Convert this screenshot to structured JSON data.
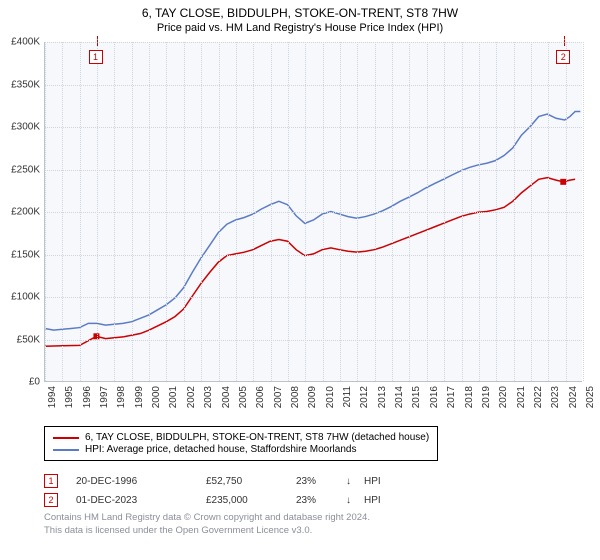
{
  "title": {
    "line1": "6, TAY CLOSE, BIDDULPH, STOKE-ON-TRENT, ST8 7HW",
    "line2": "Price paid vs. HM Land Registry's House Price Index (HPI)"
  },
  "chart": {
    "type": "line",
    "background_color": "#f6f8fc",
    "grid_color": "#d0d5dd",
    "axis_color": "#bcc3cc",
    "ylim": [
      0,
      400000
    ],
    "ytick_step": 50000,
    "yticks": [
      "£0",
      "£50K",
      "£100K",
      "£150K",
      "£200K",
      "£250K",
      "£300K",
      "£350K",
      "£400K"
    ],
    "xlim": [
      1994,
      2025
    ],
    "xticks": [
      "1994",
      "1995",
      "1996",
      "1997",
      "1998",
      "1999",
      "2000",
      "2001",
      "2002",
      "2003",
      "2004",
      "2005",
      "2006",
      "2007",
      "2008",
      "2009",
      "2010",
      "2011",
      "2012",
      "2013",
      "2014",
      "2015",
      "2016",
      "2017",
      "2018",
      "2019",
      "2020",
      "2021",
      "2022",
      "2023",
      "2024",
      "2025"
    ],
    "label_fontsize": 10,
    "series": [
      {
        "id": "price_paid",
        "label": "6, TAY CLOSE, BIDDULPH, STOKE-ON-TRENT, ST8 7HW (detached house)",
        "color": "#cc0000",
        "line_width": 1.5,
        "points": [
          [
            1994.0,
            41000
          ],
          [
            1995.0,
            41500
          ],
          [
            1996.0,
            42000
          ],
          [
            1996.97,
            52750
          ],
          [
            1997.5,
            50000
          ],
          [
            1998.0,
            51000
          ],
          [
            1998.5,
            52000
          ],
          [
            1999.0,
            54000
          ],
          [
            1999.5,
            56000
          ],
          [
            2000.0,
            60000
          ],
          [
            2000.5,
            65000
          ],
          [
            2001.0,
            70000
          ],
          [
            2001.5,
            76000
          ],
          [
            2002.0,
            85000
          ],
          [
            2002.5,
            100000
          ],
          [
            2003.0,
            115000
          ],
          [
            2003.5,
            128000
          ],
          [
            2004.0,
            140000
          ],
          [
            2004.5,
            148000
          ],
          [
            2005.0,
            150000
          ],
          [
            2005.5,
            152000
          ],
          [
            2006.0,
            155000
          ],
          [
            2006.5,
            160000
          ],
          [
            2007.0,
            165000
          ],
          [
            2007.5,
            167000
          ],
          [
            2008.0,
            165000
          ],
          [
            2008.5,
            155000
          ],
          [
            2009.0,
            148000
          ],
          [
            2009.5,
            150000
          ],
          [
            2010.0,
            155000
          ],
          [
            2010.5,
            157000
          ],
          [
            2011.0,
            155000
          ],
          [
            2011.5,
            153000
          ],
          [
            2012.0,
            152000
          ],
          [
            2012.5,
            153000
          ],
          [
            2013.0,
            155000
          ],
          [
            2013.5,
            158000
          ],
          [
            2014.0,
            162000
          ],
          [
            2014.5,
            166000
          ],
          [
            2015.0,
            170000
          ],
          [
            2015.5,
            174000
          ],
          [
            2016.0,
            178000
          ],
          [
            2016.5,
            182000
          ],
          [
            2017.0,
            186000
          ],
          [
            2017.5,
            190000
          ],
          [
            2018.0,
            194000
          ],
          [
            2018.5,
            197000
          ],
          [
            2019.0,
            199000
          ],
          [
            2019.5,
            200000
          ],
          [
            2020.0,
            202000
          ],
          [
            2020.5,
            205000
          ],
          [
            2021.0,
            212000
          ],
          [
            2021.5,
            222000
          ],
          [
            2022.0,
            230000
          ],
          [
            2022.5,
            238000
          ],
          [
            2023.0,
            240000
          ],
          [
            2023.5,
            237000
          ],
          [
            2023.92,
            235000
          ],
          [
            2024.3,
            237000
          ],
          [
            2024.6,
            238000
          ]
        ]
      },
      {
        "id": "hpi",
        "label": "HPI: Average price, detached house, Staffordshire Moorlands",
        "color": "#5b7cc4",
        "line_width": 1.5,
        "points": [
          [
            1994.0,
            62000
          ],
          [
            1994.5,
            60000
          ],
          [
            1995.0,
            61000
          ],
          [
            1995.5,
            62000
          ],
          [
            1996.0,
            63000
          ],
          [
            1996.5,
            68000
          ],
          [
            1997.0,
            68000
          ],
          [
            1997.5,
            66000
          ],
          [
            1998.0,
            67000
          ],
          [
            1998.5,
            68000
          ],
          [
            1999.0,
            70000
          ],
          [
            1999.5,
            74000
          ],
          [
            2000.0,
            78000
          ],
          [
            2000.5,
            84000
          ],
          [
            2001.0,
            90000
          ],
          [
            2001.5,
            98000
          ],
          [
            2002.0,
            110000
          ],
          [
            2002.5,
            128000
          ],
          [
            2003.0,
            145000
          ],
          [
            2003.5,
            160000
          ],
          [
            2004.0,
            175000
          ],
          [
            2004.5,
            185000
          ],
          [
            2005.0,
            190000
          ],
          [
            2005.5,
            193000
          ],
          [
            2006.0,
            197000
          ],
          [
            2006.5,
            203000
          ],
          [
            2007.0,
            208000
          ],
          [
            2007.5,
            212000
          ],
          [
            2008.0,
            208000
          ],
          [
            2008.5,
            195000
          ],
          [
            2009.0,
            186000
          ],
          [
            2009.5,
            190000
          ],
          [
            2010.0,
            197000
          ],
          [
            2010.5,
            200000
          ],
          [
            2011.0,
            197000
          ],
          [
            2011.5,
            194000
          ],
          [
            2012.0,
            192000
          ],
          [
            2012.5,
            194000
          ],
          [
            2013.0,
            197000
          ],
          [
            2013.5,
            201000
          ],
          [
            2014.0,
            206000
          ],
          [
            2014.5,
            212000
          ],
          [
            2015.0,
            217000
          ],
          [
            2015.5,
            222000
          ],
          [
            2016.0,
            228000
          ],
          [
            2016.5,
            233000
          ],
          [
            2017.0,
            238000
          ],
          [
            2017.5,
            243000
          ],
          [
            2018.0,
            248000
          ],
          [
            2018.5,
            252000
          ],
          [
            2019.0,
            255000
          ],
          [
            2019.5,
            257000
          ],
          [
            2020.0,
            260000
          ],
          [
            2020.5,
            266000
          ],
          [
            2021.0,
            275000
          ],
          [
            2021.5,
            290000
          ],
          [
            2022.0,
            300000
          ],
          [
            2022.5,
            312000
          ],
          [
            2023.0,
            315000
          ],
          [
            2023.5,
            310000
          ],
          [
            2024.0,
            308000
          ],
          [
            2024.3,
            312000
          ],
          [
            2024.6,
            318000
          ],
          [
            2024.9,
            318000
          ]
        ]
      }
    ],
    "markers": [
      {
        "n": "1",
        "color": "#cc0000",
        "year": 1996.97
      },
      {
        "n": "2",
        "color": "#cc0000",
        "year": 2023.92
      }
    ]
  },
  "legend": {
    "items": [
      {
        "color": "#cc0000",
        "label": "6, TAY CLOSE, BIDDULPH, STOKE-ON-TRENT, ST8 7HW (detached house)"
      },
      {
        "color": "#5b7cc4",
        "label": "HPI: Average price, detached house, Staffordshire Moorlands"
      }
    ]
  },
  "transactions": [
    {
      "n": "1",
      "color": "#cc0000",
      "date": "20-DEC-1996",
      "price": "£52,750",
      "pct": "23%",
      "arrow": "↓",
      "suffix": "HPI"
    },
    {
      "n": "2",
      "color": "#cc0000",
      "date": "01-DEC-2023",
      "price": "£235,000",
      "pct": "23%",
      "arrow": "↓",
      "suffix": "HPI"
    }
  ],
  "footnote": {
    "line1": "Contains HM Land Registry data © Crown copyright and database right 2024.",
    "line2": "This data is licensed under the Open Government Licence v3.0."
  }
}
